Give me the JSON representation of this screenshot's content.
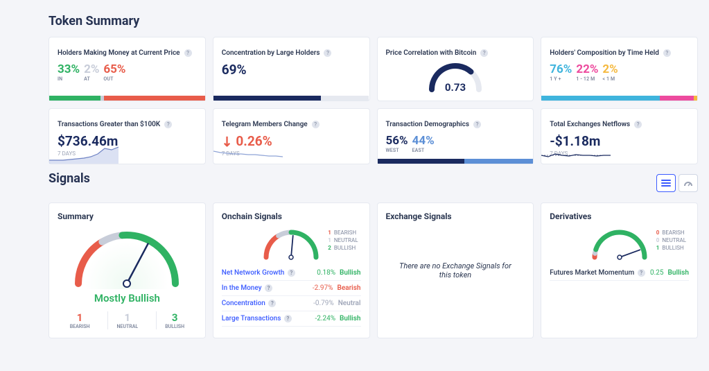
{
  "colors": {
    "green": "#2fb263",
    "gray": "#c8cdd9",
    "red": "#e85c4a",
    "navy": "#1a2a5f",
    "blue": "#3b5bff",
    "midblue": "#5c8fd6",
    "cyan": "#3fb4dd",
    "pink": "#ed4b9e",
    "yellow": "#f5b93f"
  },
  "token_summary": {
    "title": "Token Summary",
    "holders_money": {
      "title": "Holders Making Money at Current Price",
      "in": {
        "value": "33%",
        "label": "IN",
        "color": "#2fb263"
      },
      "at": {
        "value": "2%",
        "label": "AT",
        "color": "#c8cdd9"
      },
      "out": {
        "value": "65%",
        "label": "OUT",
        "color": "#e85c4a"
      },
      "bar": [
        {
          "pct": 33,
          "color": "#2fb263"
        },
        {
          "pct": 2,
          "color": "#c8cdd9"
        },
        {
          "pct": 65,
          "color": "#e85c4a"
        }
      ]
    },
    "concentration": {
      "title": "Concentration by Large Holders",
      "value": "69%",
      "bar": [
        {
          "pct": 69,
          "color": "#1a2a5f"
        },
        {
          "pct": 31,
          "color": "#e6e9f0"
        }
      ]
    },
    "correlation": {
      "title": "Price Correlation with Bitcoin",
      "value": "0.73",
      "gauge": {
        "min": 0,
        "max": 1,
        "val": 0.73,
        "stroke": "#1a2a5f",
        "bg": "#e6e9f0"
      }
    },
    "composition": {
      "title": "Holders' Composition by Time Held",
      "a": {
        "value": "76%",
        "label": "1 Y +",
        "color": "#3fb4dd"
      },
      "b": {
        "value": "22%",
        "label": "1 - 12 M",
        "color": "#ed4b9e"
      },
      "c": {
        "value": "2%",
        "label": "< 1 M",
        "color": "#f5b93f"
      },
      "bar": [
        {
          "pct": 76,
          "color": "#3fb4dd"
        },
        {
          "pct": 22,
          "color": "#ed4b9e"
        },
        {
          "pct": 2,
          "color": "#f5b93f"
        }
      ]
    },
    "large_tx": {
      "title": "Transactions Greater than $100K",
      "value": "$736.46m",
      "period": "7 DAYS",
      "spark": {
        "points": [
          5,
          5,
          5,
          6,
          7,
          8,
          10,
          14,
          22,
          20,
          24
        ],
        "fill": "#b8c4e8",
        "stroke": "#6e82c4"
      }
    },
    "telegram": {
      "title": "Telegram Members Change",
      "value": "0.26%",
      "direction": "down",
      "color": "#e85c4a",
      "period": "7 DAYS",
      "spark": {
        "points": [
          18,
          16,
          15,
          14,
          14,
          13,
          13,
          12,
          11,
          11,
          10
        ],
        "stroke": "#8ea3d6",
        "fill": "none"
      }
    },
    "demographics": {
      "title": "Transaction Demographics",
      "west": {
        "value": "56%",
        "label": "WEST",
        "color": "#1a2a5f"
      },
      "east": {
        "value": "44%",
        "label": "EAST",
        "color": "#5c8fd6"
      },
      "bar": [
        {
          "pct": 56,
          "color": "#1a2a5f"
        },
        {
          "pct": 44,
          "color": "#5c8fd6"
        }
      ]
    },
    "netflows": {
      "title": "Total Exchanges Netflows",
      "value": "-$1.18m",
      "period": "7 DAYS",
      "spark": {
        "dashed": [
          12,
          12,
          12,
          12,
          12,
          12,
          12,
          12,
          12,
          12,
          12
        ],
        "points": [
          12,
          10,
          14,
          12,
          11,
          13,
          12,
          12,
          11,
          12,
          12
        ],
        "stroke": "#1a2a5f"
      }
    }
  },
  "signals": {
    "title": "Signals",
    "summary": {
      "title": "Summary",
      "label": "Mostly Bullish",
      "label_color": "#2fb263",
      "needle_angle": 118,
      "counts": {
        "bearish": {
          "n": "1",
          "label": "BEARISH",
          "color": "#e85c4a"
        },
        "neutral": {
          "n": "1",
          "label": "NEUTRAL",
          "color": "#c8cdd9"
        },
        "bullish": {
          "n": "3",
          "label": "BULLISH",
          "color": "#2fb263"
        }
      },
      "arc_colors": {
        "bearish": "#e85c4a",
        "neutral": "#c8cdd9",
        "bullish": "#2fb263"
      },
      "arc_split": [
        0.33,
        0.47
      ]
    },
    "onchain": {
      "title": "Onchain Signals",
      "legend": {
        "bearish": {
          "n": "1",
          "text": "BEARISH",
          "color": "#e85c4a"
        },
        "neutral": {
          "n": "1",
          "text": "NEUTRAL",
          "color": "#c8cdd9"
        },
        "bullish": {
          "n": "2",
          "text": "BULLISH",
          "color": "#2fb263"
        }
      },
      "needle_angle": 95,
      "arc_split": [
        0.33,
        0.5
      ],
      "rows": [
        {
          "name": "Net Network Growth",
          "value": "0.18%",
          "verdict": "Bullish",
          "color": "#2fb263"
        },
        {
          "name": "In the Money",
          "value": "-2.97%",
          "verdict": "Bearish",
          "color": "#e85c4a"
        },
        {
          "name": "Concentration",
          "value": "-0.79%",
          "verdict": "Neutral",
          "color": "#a0a7b9"
        },
        {
          "name": "Large Transactions",
          "value": "-2.24%",
          "verdict": "Bullish",
          "color": "#2fb263"
        }
      ]
    },
    "exchange": {
      "title": "Exchange Signals",
      "empty": "There are no Exchange Signals for this token"
    },
    "derivatives": {
      "title": "Derivatives",
      "legend": {
        "bearish": {
          "n": "0",
          "text": "BEARISH",
          "color": "#e85c4a"
        },
        "neutral": {
          "n": "0",
          "text": "NEUTRAL",
          "color": "#c8cdd9"
        },
        "bullish": {
          "n": "1",
          "text": "BULLISH",
          "color": "#2fb263"
        }
      },
      "needle_angle": 160,
      "arc_split": [
        0.05,
        0.1
      ],
      "rows": [
        {
          "name": "Futures Market Momentum",
          "value": "0.25",
          "verdict": "Bullish",
          "color": "#2fb263"
        }
      ]
    }
  }
}
